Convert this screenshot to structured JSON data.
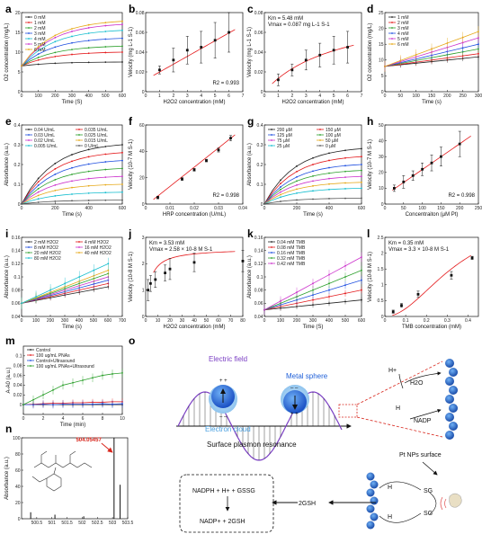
{
  "labels": {
    "a": "a",
    "b": "b",
    "c": "c",
    "d": "d",
    "e": "e",
    "f": "f",
    "g": "g",
    "h": "h",
    "i": "i",
    "j": "j",
    "k": "k",
    "l": "l",
    "m": "m",
    "n": "n",
    "o": "o"
  },
  "chart_data": [
    {
      "id": "a",
      "type": "line",
      "xlabel": "Time (S)",
      "ylabel": "O2 concentration (mg/L)",
      "xlim": [
        0,
        600
      ],
      "ylim": [
        0,
        20
      ],
      "xticks": [
        0,
        100,
        200,
        300,
        400,
        500,
        600
      ],
      "yticks": [
        0,
        5,
        10,
        15,
        20
      ],
      "series": [
        {
          "name": "0 mM",
          "color": "#222222",
          "y0": 6.5,
          "y1": 7.5
        },
        {
          "name": "1 mM",
          "color": "#e41a1c",
          "y0": 6.5,
          "y1": 10
        },
        {
          "name": "2 mM",
          "color": "#2ca02c",
          "y0": 6.5,
          "y1": 11.5
        },
        {
          "name": "3 mM",
          "color": "#1f4fe0",
          "y0": 6.5,
          "y1": 13.5
        },
        {
          "name": "4 mM",
          "color": "#17becf",
          "y0": 6.5,
          "y1": 15.5
        },
        {
          "name": "5 mM",
          "color": "#cc33cc",
          "y0": 6.5,
          "y1": 17
        },
        {
          "name": "6 mM",
          "color": "#e6a817",
          "y0": 6.5,
          "y1": 17.8
        }
      ]
    },
    {
      "id": "b",
      "type": "scatter",
      "xlabel": "H2O2 concentration (mM)",
      "ylabel": "Velocity (mg L-1 S-1)",
      "xlim": [
        0,
        7
      ],
      "ylim": [
        0,
        0.08
      ],
      "xticks": [
        0,
        1,
        2,
        3,
        4,
        5,
        6,
        7
      ],
      "yticks": [
        0,
        0.02,
        0.04,
        0.06,
        0.08
      ],
      "x": [
        1,
        2,
        3,
        4,
        5,
        6
      ],
      "y": [
        0.022,
        0.032,
        0.042,
        0.045,
        0.052,
        0.06
      ],
      "err": [
        0.004,
        0.012,
        0.014,
        0.016,
        0.018,
        0.02
      ],
      "fit": [
        0.012,
        0.0079
      ],
      "annotation": "R2 = 0.993"
    },
    {
      "id": "c",
      "type": "scatter",
      "xlabel": "H2O2 concentration (mM)",
      "ylabel": "Velocity (mg L-1 S-1)",
      "xlim": [
        0,
        7
      ],
      "ylim": [
        0,
        0.08
      ],
      "xticks": [
        0,
        1,
        2,
        3,
        4,
        5,
        6,
        7
      ],
      "yticks": [
        0,
        0.02,
        0.04,
        0.06,
        0.08
      ],
      "x": [
        1,
        2,
        3,
        4,
        5,
        6
      ],
      "y": [
        0.012,
        0.022,
        0.032,
        0.037,
        0.042,
        0.045
      ],
      "err": [
        0.006,
        0.006,
        0.01,
        0.012,
        0.014,
        0.016
      ],
      "km": 5.48,
      "vmax": 0.087,
      "annotation_km": "Km = 5.48 mM",
      "annotation_vmax": "Vmax = 0.087 mg L-1 S-1"
    },
    {
      "id": "d",
      "type": "line",
      "xlabel": "Time (s)",
      "ylabel": "O2 concentration (mg/L)",
      "xlim": [
        0,
        300
      ],
      "ylim": [
        0,
        25
      ],
      "xticks": [
        0,
        50,
        100,
        150,
        200,
        250,
        300
      ],
      "yticks": [
        0,
        5,
        10,
        15,
        20,
        25
      ],
      "series": [
        {
          "name": "1 mM",
          "color": "#222222",
          "y0": 8,
          "y1": 11
        },
        {
          "name": "2 mM",
          "color": "#e41a1c",
          "y0": 8,
          "y1": 12
        },
        {
          "name": "3 mM",
          "color": "#2ca02c",
          "y0": 8,
          "y1": 13.5
        },
        {
          "name": "4 mM",
          "color": "#1f4fe0",
          "y0": 8,
          "y1": 15
        },
        {
          "name": "5 mM",
          "color": "#cc33cc",
          "y0": 8,
          "y1": 17
        },
        {
          "name": "6 mM",
          "color": "#e6a817",
          "y0": 8,
          "y1": 19
        }
      ]
    },
    {
      "id": "e",
      "type": "line",
      "xlabel": "Time (s)",
      "ylabel": "Absorbance (a.u.)",
      "xlim": [
        0,
        600
      ],
      "ylim": [
        0,
        0.4
      ],
      "xticks": [
        0,
        200,
        400,
        600
      ],
      "yticks": [
        0,
        0.1,
        0.2,
        0.3,
        0.4
      ],
      "series": [
        {
          "name": "0.04 U/mL",
          "color": "#222222",
          "y1": 0.3
        },
        {
          "name": "0.035 U/mL",
          "color": "#e41a1c",
          "y1": 0.26
        },
        {
          "name": "0.03 U/mL",
          "color": "#1f4fe0",
          "y1": 0.22
        },
        {
          "name": "0.025 U/mL",
          "color": "#2ca02c",
          "y1": 0.18
        },
        {
          "name": "0.02 U/mL",
          "color": "#cc33cc",
          "y1": 0.14
        },
        {
          "name": "0.015 U/mL",
          "color": "#e6a817",
          "y1": 0.1
        },
        {
          "name": "0.005 U/mL",
          "color": "#17becf",
          "y1": 0.06
        },
        {
          "name": "0 U/mL",
          "color": "#555555",
          "y1": 0.02
        }
      ]
    },
    {
      "id": "f",
      "type": "scatter",
      "xlabel": "HRP concentration (U/mL)",
      "ylabel": "Velocity (10-7 M S-1)",
      "xlim": [
        0,
        0.04
      ],
      "ylim": [
        0,
        60
      ],
      "xticks": [
        0,
        0.01,
        0.02,
        0.03,
        0.04
      ],
      "yticks": [
        0,
        20,
        40,
        60
      ],
      "x": [
        0.005,
        0.015,
        0.02,
        0.025,
        0.03,
        0.035
      ],
      "y": [
        5,
        19,
        26,
        33,
        41,
        50
      ],
      "err": [
        1,
        1,
        1,
        1,
        1.5,
        2
      ],
      "fit": [
        -1.2,
        1460
      ],
      "annotation": "R2 = 0.998"
    },
    {
      "id": "g",
      "type": "line",
      "xlabel": "Time (s)",
      "ylabel": "Absorbance (a.u.)",
      "xlim": [
        0,
        600
      ],
      "ylim": [
        0,
        0.4
      ],
      "xticks": [
        0,
        200,
        400,
        600
      ],
      "yticks": [
        0,
        0.1,
        0.2,
        0.3,
        0.4
      ],
      "series": [
        {
          "name": "200 µM",
          "color": "#222222",
          "y1": 0.28
        },
        {
          "name": "150 µM",
          "color": "#e41a1c",
          "y1": 0.24
        },
        {
          "name": "125 µM",
          "color": "#1f4fe0",
          "y1": 0.2
        },
        {
          "name": "100 µM",
          "color": "#2ca02c",
          "y1": 0.17
        },
        {
          "name": "75 µM",
          "color": "#cc33cc",
          "y1": 0.14
        },
        {
          "name": "50 µM",
          "color": "#e6a817",
          "y1": 0.11
        },
        {
          "name": "25 µM",
          "color": "#17becf",
          "y1": 0.08
        },
        {
          "name": "0 µM",
          "color": "#555555",
          "y1": 0.03
        }
      ]
    },
    {
      "id": "h",
      "type": "scatter",
      "xlabel": "Concentraiton (µM Pt)",
      "ylabel": "Velocity (10-7 M S-1)",
      "xlim": [
        0,
        250
      ],
      "ylim": [
        0,
        50
      ],
      "xticks": [
        0,
        50,
        100,
        150,
        200,
        250
      ],
      "yticks": [
        0,
        10,
        20,
        30,
        40,
        50
      ],
      "x": [
        25,
        50,
        75,
        100,
        125,
        150,
        200
      ],
      "y": [
        10,
        14,
        18,
        22,
        26,
        30,
        38
      ],
      "err": [
        2,
        4,
        3,
        4,
        5,
        6,
        8
      ],
      "fit": [
        5.5,
        0.163
      ],
      "annotation": "R2 = 0.998"
    },
    {
      "id": "i",
      "type": "line",
      "xlabel": "Time (s)",
      "ylabel": "Absorbance (a.u.)",
      "xlim": [
        0,
        700
      ],
      "ylim": [
        0.04,
        0.16
      ],
      "xticks": [
        0,
        100,
        200,
        300,
        400,
        500,
        600,
        700
      ],
      "yticks": [
        0.04,
        0.06,
        0.08,
        0.1,
        0.12,
        0.14,
        0.16
      ],
      "series": [
        {
          "name": "2 mM H2O2",
          "color": "#222222",
          "y0": 0.06,
          "y1": 0.085
        },
        {
          "name": "4 mM H2O2",
          "color": "#e41a1c",
          "y0": 0.06,
          "y1": 0.09
        },
        {
          "name": "8 mM H2O2",
          "color": "#1f4fe0",
          "y0": 0.06,
          "y1": 0.095
        },
        {
          "name": "16 mM H2O2",
          "color": "#cc33cc",
          "y0": 0.06,
          "y1": 0.1
        },
        {
          "name": "20 mM H2O2",
          "color": "#2ca02c",
          "y0": 0.06,
          "y1": 0.105
        },
        {
          "name": "40 mM H2O2",
          "color": "#e6a817",
          "y0": 0.06,
          "y1": 0.11
        },
        {
          "name": "80 mM H2O2",
          "color": "#17becf",
          "y0": 0.06,
          "y1": 0.12
        }
      ]
    },
    {
      "id": "j",
      "type": "scatter",
      "xlabel": "H2O2 concentration (mM)",
      "ylabel": "Velocity (10-8 M S-1)",
      "xlim": [
        0,
        80
      ],
      "ylim": [
        0,
        3
      ],
      "xticks": [
        0,
        10,
        20,
        30,
        40,
        50,
        60,
        70,
        80
      ],
      "yticks": [
        0,
        1,
        2,
        3
      ],
      "x": [
        2,
        4,
        8,
        16,
        20,
        40,
        80
      ],
      "y": [
        1,
        1.25,
        1.4,
        1.65,
        1.8,
        2.05,
        2.1
      ],
      "err": [
        0.4,
        0.3,
        0.3,
        0.3,
        0.4,
        0.35,
        0.4
      ],
      "km": 3.53,
      "vmax": 2.58,
      "annotation_km": "Km = 3.53 mM",
      "annotation_vmax": "Vmax = 2.58 × 10-8 M S-1"
    },
    {
      "id": "k",
      "type": "line",
      "xlabel": "Time (S)",
      "ylabel": "Absorbance (a.u.)",
      "xlim": [
        0,
        600
      ],
      "ylim": [
        0.04,
        0.16
      ],
      "xticks": [
        0,
        100,
        200,
        300,
        400,
        500,
        600
      ],
      "yticks": [
        0.04,
        0.06,
        0.08,
        0.1,
        0.12,
        0.14,
        0.16
      ],
      "series": [
        {
          "name": "0.04 mM TMB",
          "color": "#222222",
          "y0": 0.05,
          "y1": 0.065
        },
        {
          "name": "0.08 mM TMB",
          "color": "#e41a1c",
          "y0": 0.05,
          "y1": 0.08
        },
        {
          "name": "0.16 mM TMB",
          "color": "#1f4fe0",
          "y0": 0.05,
          "y1": 0.095
        },
        {
          "name": "0.32 mM TMB",
          "color": "#2ca02c",
          "y0": 0.05,
          "y1": 0.11
        },
        {
          "name": "0.42 mM TMB",
          "color": "#cc33cc",
          "y0": 0.05,
          "y1": 0.13
        }
      ]
    },
    {
      "id": "l",
      "type": "scatter",
      "xlabel": "TMB concentration (mM)",
      "ylabel": "Velocity (10-8 M S-1)",
      "xlim": [
        0,
        0.45
      ],
      "ylim": [
        0,
        2.5
      ],
      "xticks": [
        0,
        0.1,
        0.2,
        0.3,
        0.4
      ],
      "yticks": [
        0,
        0.5,
        1,
        1.5,
        2,
        2.5
      ],
      "x": [
        0.04,
        0.08,
        0.16,
        0.32,
        0.42
      ],
      "y": [
        0.15,
        0.35,
        0.7,
        1.3,
        1.85
      ],
      "err": [
        0.05,
        0.06,
        0.1,
        0.12,
        0.05
      ],
      "km": 0.35,
      "vmax": 3.3,
      "hill": 2,
      "annotation_km": "Km = 0.35 mM",
      "annotation_vmax": "Vmax = 3.3 × 10-8 M S-1"
    },
    {
      "id": "m",
      "type": "line",
      "xlabel": "Time (min)",
      "ylabel": "A-A0 (a.u.)",
      "xlim": [
        0,
        10
      ],
      "ylim": [
        -0.02,
        0.12
      ],
      "xticks": [
        0,
        2,
        4,
        6,
        8,
        10
      ],
      "yticks": [
        0,
        0.02,
        0.04,
        0.06,
        0.08,
        0.1
      ],
      "x": [
        0,
        1,
        2,
        3,
        4,
        5,
        6,
        7,
        8,
        9,
        10
      ],
      "series": [
        {
          "name": "Control",
          "color": "#222222",
          "values": [
            0,
            0,
            0,
            0,
            0,
            0,
            0,
            0,
            0,
            0,
            0
          ]
        },
        {
          "name": "100 ug/mL PNAs",
          "color": "#e41a1c",
          "values": [
            0,
            0.001,
            0.002,
            0.003,
            0.003,
            0.004,
            0.004,
            0.005,
            0.005,
            0.006,
            0.006
          ]
        },
        {
          "name": "Control+Ultrasound",
          "color": "#1f4fe0",
          "values": [
            0,
            0,
            0.001,
            0,
            0.001,
            0.001,
            0.001,
            0.001,
            0.002,
            0.001,
            0.002
          ]
        },
        {
          "name": "100 ug/mL PNAs+Ultrasound",
          "color": "#2ca02c",
          "values": [
            0,
            0.01,
            0.02,
            0.03,
            0.04,
            0.045,
            0.05,
            0.055,
            0.06,
            0.063,
            0.065
          ]
        }
      ]
    },
    {
      "id": "n",
      "type": "bar",
      "xlabel": "",
      "ylabel": "Absorbance (a.u.)",
      "xlim": [
        500,
        503.5
      ],
      "ylim": [
        0,
        100
      ],
      "xticks": [
        500.5,
        501,
        501.5,
        502,
        502.5,
        503,
        503.5
      ],
      "yticks": [
        0,
        20,
        40,
        60,
        80,
        100
      ],
      "x": [
        500.3,
        501.1,
        502.05,
        503.05,
        503.25
      ],
      "values": [
        8,
        5,
        3,
        100,
        42
      ],
      "annotation": "504.05457"
    }
  ],
  "diagram": {
    "electric_field": "Electric field",
    "metal_sphere": "Metal sphere",
    "electron_cloud": "Electron cloud",
    "spr": "Surface plasmon resonance",
    "pt_surface": "Pt NPs surface",
    "hplus": "H+",
    "h2o": "H2O",
    "h": "H",
    "nadp": "NADP",
    "reaction_in": "NADPH + H+ + GSSG",
    "reaction_out": "NADP+ + 2GSH",
    "gsh": "2GSH",
    "sg": "SG",
    "colors": {
      "wave": "#7b3fc4",
      "sphere": "#1e5fd8",
      "cloud": "#8fc4ee",
      "arrow_red": "#d8261c"
    }
  }
}
